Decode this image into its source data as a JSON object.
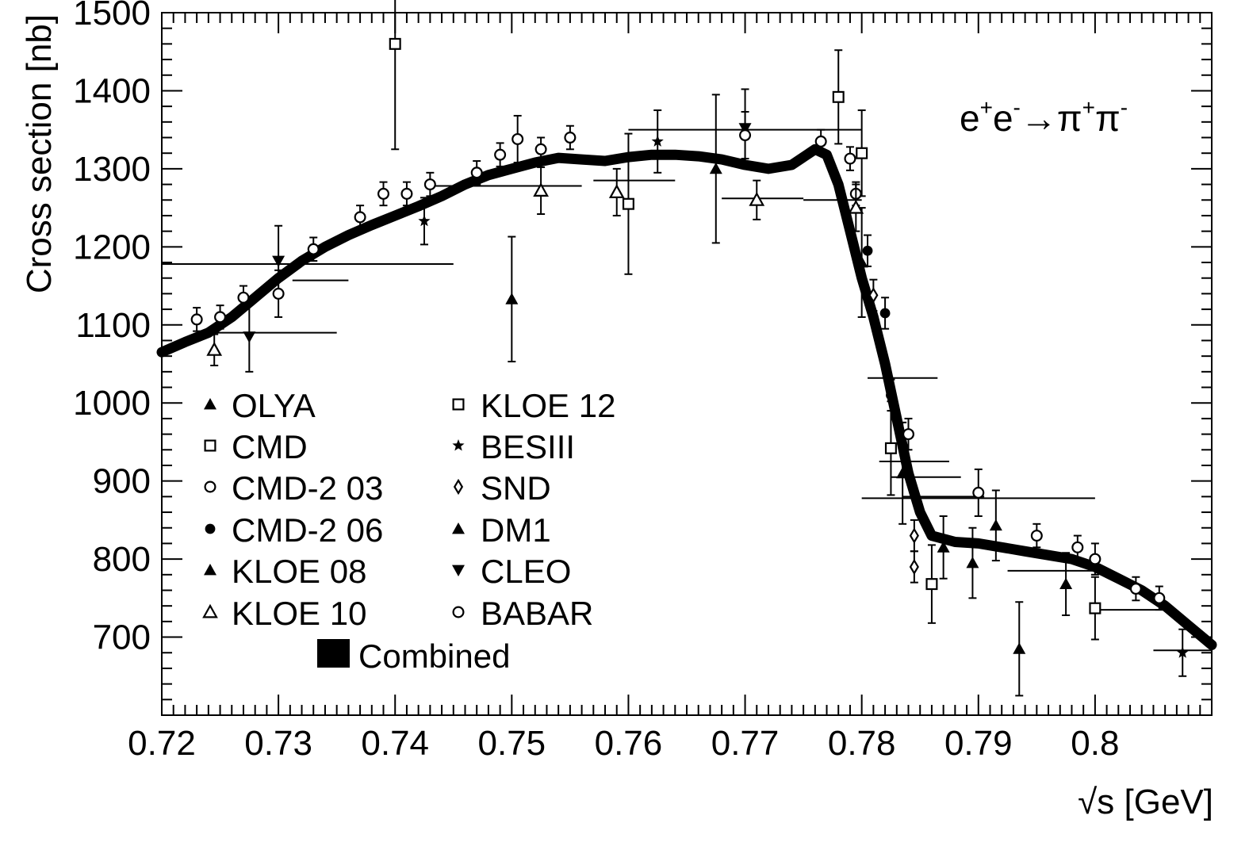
{
  "chart_data": {
    "type": "scatter",
    "title": "",
    "annotation": {
      "base": "e",
      "sup1": "+",
      "mid": "e",
      "sup2": "-",
      "arrow": "→π",
      "sup3": "+",
      "end": "π",
      "sup4": "-"
    },
    "xlabel": "√s   [GeV]",
    "ylabel": "Cross section   [nb]",
    "xlim": [
      0.72,
      0.81
    ],
    "ylim": [
      600,
      1500
    ],
    "x_ticks": [
      "0.72",
      "0.73",
      "0.74",
      "0.75",
      "0.76",
      "0.77",
      "0.78",
      "0.79",
      "0.8"
    ],
    "y_ticks": [
      "700",
      "800",
      "900",
      "1000",
      "1100",
      "1200",
      "1300",
      "1400",
      "1500"
    ],
    "legend_position": "lower-left",
    "legend": [
      {
        "name": "OLYA",
        "marker": "tri-up-filled"
      },
      {
        "name": "CMD",
        "marker": "square-open"
      },
      {
        "name": "CMD-2 03",
        "marker": "circle-open"
      },
      {
        "name": "CMD-2 06",
        "marker": "circle-filled"
      },
      {
        "name": "KLOE 08",
        "marker": "tri-up-filled"
      },
      {
        "name": "KLOE 10",
        "marker": "tri-up-open"
      },
      {
        "name": "KLOE 12",
        "marker": "square-open"
      },
      {
        "name": "BESIII",
        "marker": "star"
      },
      {
        "name": "SND",
        "marker": "diamond-open"
      },
      {
        "name": "DM1",
        "marker": "tri-up-filled"
      },
      {
        "name": "CLEO",
        "marker": "tri-down-filled"
      },
      {
        "name": "BABAR",
        "marker": "circle-open"
      }
    ],
    "combined_label": "Combined",
    "combined_curve": {
      "x": [
        0.72,
        0.722,
        0.724,
        0.726,
        0.728,
        0.73,
        0.732,
        0.734,
        0.736,
        0.738,
        0.74,
        0.742,
        0.744,
        0.746,
        0.748,
        0.75,
        0.752,
        0.754,
        0.756,
        0.758,
        0.76,
        0.762,
        0.764,
        0.766,
        0.768,
        0.77,
        0.772,
        0.774,
        0.776,
        0.777,
        0.778,
        0.779,
        0.78,
        0.781,
        0.782,
        0.783,
        0.784,
        0.785,
        0.786,
        0.788,
        0.79,
        0.792,
        0.794,
        0.796,
        0.798,
        0.8,
        0.802,
        0.804,
        0.806,
        0.808,
        0.81
      ],
      "y": [
        1065,
        1078,
        1090,
        1110,
        1135,
        1160,
        1182,
        1200,
        1215,
        1228,
        1240,
        1252,
        1265,
        1280,
        1292,
        1300,
        1308,
        1314,
        1312,
        1310,
        1315,
        1318,
        1318,
        1316,
        1312,
        1305,
        1300,
        1305,
        1325,
        1318,
        1280,
        1220,
        1160,
        1110,
        1050,
        980,
        910,
        860,
        830,
        822,
        820,
        815,
        810,
        805,
        800,
        790,
        775,
        760,
        740,
        715,
        690
      ]
    },
    "points": [
      {
        "marker": "square-open",
        "x": 0.74,
        "y": 1460,
        "err": 135
      },
      {
        "marker": "square-open",
        "x": 0.778,
        "y": 1392,
        "err": 60
      },
      {
        "marker": "square-open",
        "x": 0.78,
        "y": 1320,
        "err": 55
      },
      {
        "marker": "square-open",
        "x": 0.76,
        "y": 1255,
        "err": 90
      },
      {
        "marker": "square-open",
        "x": 0.7825,
        "y": 942,
        "err": 60
      },
      {
        "marker": "square-open",
        "x": 0.786,
        "y": 768,
        "err": 50
      },
      {
        "marker": "square-open",
        "x": 0.8,
        "y": 737,
        "err": 40
      },
      {
        "marker": "tri-up-filled",
        "x": 0.75,
        "y": 1133,
        "err": 80
      },
      {
        "marker": "tri-up-filled",
        "x": 0.78,
        "y": 1180,
        "err": 70
      },
      {
        "marker": "tri-up-filled",
        "x": 0.7835,
        "y": 910,
        "err": 65
      },
      {
        "marker": "tri-up-filled",
        "x": 0.787,
        "y": 815,
        "err": 40
      },
      {
        "marker": "tri-up-filled",
        "x": 0.7895,
        "y": 795,
        "err": 45
      },
      {
        "marker": "tri-up-filled",
        "x": 0.7915,
        "y": 843,
        "err": 45
      },
      {
        "marker": "tri-up-filled",
        "x": 0.7935,
        "y": 685,
        "err": 60
      },
      {
        "marker": "tri-up-filled",
        "x": 0.7975,
        "y": 768,
        "err": 40
      },
      {
        "marker": "tri-up-filled",
        "x": 0.7675,
        "y": 1300,
        "err": 95
      },
      {
        "marker": "tri-down-filled",
        "x": 0.7275,
        "y": 1085,
        "err": 45
      },
      {
        "marker": "tri-down-filled",
        "x": 0.73,
        "y": 1182,
        "err": 45
      },
      {
        "marker": "tri-down-filled",
        "x": 0.77,
        "y": 1352,
        "err": 50
      },
      {
        "marker": "circle-open",
        "x": 0.723,
        "y": 1107,
        "err": 15
      },
      {
        "marker": "circle-open",
        "x": 0.725,
        "y": 1110,
        "err": 15
      },
      {
        "marker": "circle-open",
        "x": 0.727,
        "y": 1135,
        "err": 15
      },
      {
        "marker": "circle-open",
        "x": 0.73,
        "y": 1140,
        "err": 30
      },
      {
        "marker": "circle-open",
        "x": 0.733,
        "y": 1197,
        "err": 15
      },
      {
        "marker": "circle-open",
        "x": 0.737,
        "y": 1238,
        "err": 15
      },
      {
        "marker": "circle-open",
        "x": 0.739,
        "y": 1268,
        "err": 15
      },
      {
        "marker": "circle-open",
        "x": 0.741,
        "y": 1268,
        "err": 15
      },
      {
        "marker": "circle-open",
        "x": 0.743,
        "y": 1280,
        "err": 15
      },
      {
        "marker": "circle-open",
        "x": 0.747,
        "y": 1295,
        "err": 15
      },
      {
        "marker": "circle-open",
        "x": 0.749,
        "y": 1318,
        "err": 15
      },
      {
        "marker": "circle-open",
        "x": 0.7505,
        "y": 1338,
        "err": 30
      },
      {
        "marker": "circle-open",
        "x": 0.7525,
        "y": 1325,
        "err": 15
      },
      {
        "marker": "circle-open",
        "x": 0.755,
        "y": 1340,
        "err": 15
      },
      {
        "marker": "circle-open",
        "x": 0.77,
        "y": 1343,
        "err": 30
      },
      {
        "marker": "circle-open",
        "x": 0.7765,
        "y": 1335,
        "err": 15
      },
      {
        "marker": "circle-open",
        "x": 0.779,
        "y": 1313,
        "err": 15
      },
      {
        "marker": "circle-open",
        "x": 0.7795,
        "y": 1268,
        "err": 15
      },
      {
        "marker": "circle-open",
        "x": 0.784,
        "y": 960,
        "err": 20
      },
      {
        "marker": "circle-open",
        "x": 0.79,
        "y": 885,
        "err": 30
      },
      {
        "marker": "circle-open",
        "x": 0.795,
        "y": 830,
        "err": 15
      },
      {
        "marker": "circle-open",
        "x": 0.7985,
        "y": 815,
        "err": 15
      },
      {
        "marker": "circle-open",
        "x": 0.8,
        "y": 800,
        "err": 20
      },
      {
        "marker": "circle-open",
        "x": 0.8035,
        "y": 762,
        "err": 15
      },
      {
        "marker": "circle-open",
        "x": 0.8055,
        "y": 750,
        "err": 15
      },
      {
        "marker": "circle-filled",
        "x": 0.7825,
        "y": 1010,
        "err": 20
      },
      {
        "marker": "circle-filled",
        "x": 0.782,
        "y": 1115,
        "err": 20
      },
      {
        "marker": "circle-filled",
        "x": 0.7805,
        "y": 1195,
        "err": 20
      },
      {
        "marker": "star",
        "x": 0.7425,
        "y": 1233,
        "err": 30
      },
      {
        "marker": "star",
        "x": 0.7625,
        "y": 1335,
        "err": 40
      },
      {
        "marker": "star",
        "x": 0.8075,
        "y": 680,
        "err": 30
      },
      {
        "marker": "diamond-open",
        "x": 0.781,
        "y": 1138,
        "err": 20
      },
      {
        "marker": "diamond-open",
        "x": 0.7845,
        "y": 830,
        "err": 20
      },
      {
        "marker": "diamond-open",
        "x": 0.7845,
        "y": 790,
        "err": 20
      },
      {
        "marker": "tri-up-open",
        "x": 0.7245,
        "y": 1068,
        "err": 20
      },
      {
        "marker": "tri-up-open",
        "x": 0.7525,
        "y": 1272,
        "err": 30
      },
      {
        "marker": "tri-up-open",
        "x": 0.759,
        "y": 1270,
        "err": 30
      },
      {
        "marker": "tri-up-open",
        "x": 0.771,
        "y": 1260,
        "err": 25
      },
      {
        "marker": "tri-up-open",
        "x": 0.7795,
        "y": 1250,
        "err": 30
      }
    ],
    "hbars": [
      {
        "x1": 0.72,
        "x2": 0.745,
        "y": 1178
      },
      {
        "x1": 0.7312,
        "x2": 0.736,
        "y": 1157
      },
      {
        "x1": 0.724,
        "x2": 0.735,
        "y": 1090
      },
      {
        "x1": 0.76,
        "x2": 0.78,
        "y": 1350
      },
      {
        "x1": 0.757,
        "x2": 0.764,
        "y": 1285
      },
      {
        "x1": 0.768,
        "x2": 0.775,
        "y": 1262
      },
      {
        "x1": 0.78,
        "x2": 0.8,
        "y": 878
      },
      {
        "x1": 0.7805,
        "x2": 0.7865,
        "y": 1032
      },
      {
        "x1": 0.7815,
        "x2": 0.7875,
        "y": 925
      },
      {
        "x1": 0.7825,
        "x2": 0.7885,
        "y": 905
      },
      {
        "x1": 0.7835,
        "x2": 0.7905,
        "y": 880
      },
      {
        "x1": 0.7925,
        "x2": 0.8,
        "y": 785
      },
      {
        "x1": 0.8,
        "x2": 0.806,
        "y": 735
      },
      {
        "x1": 0.805,
        "x2": 0.81,
        "y": 683
      },
      {
        "x1": 0.743,
        "x2": 0.756,
        "y": 1278
      },
      {
        "x1": 0.775,
        "x2": 0.78,
        "y": 1260
      }
    ]
  }
}
